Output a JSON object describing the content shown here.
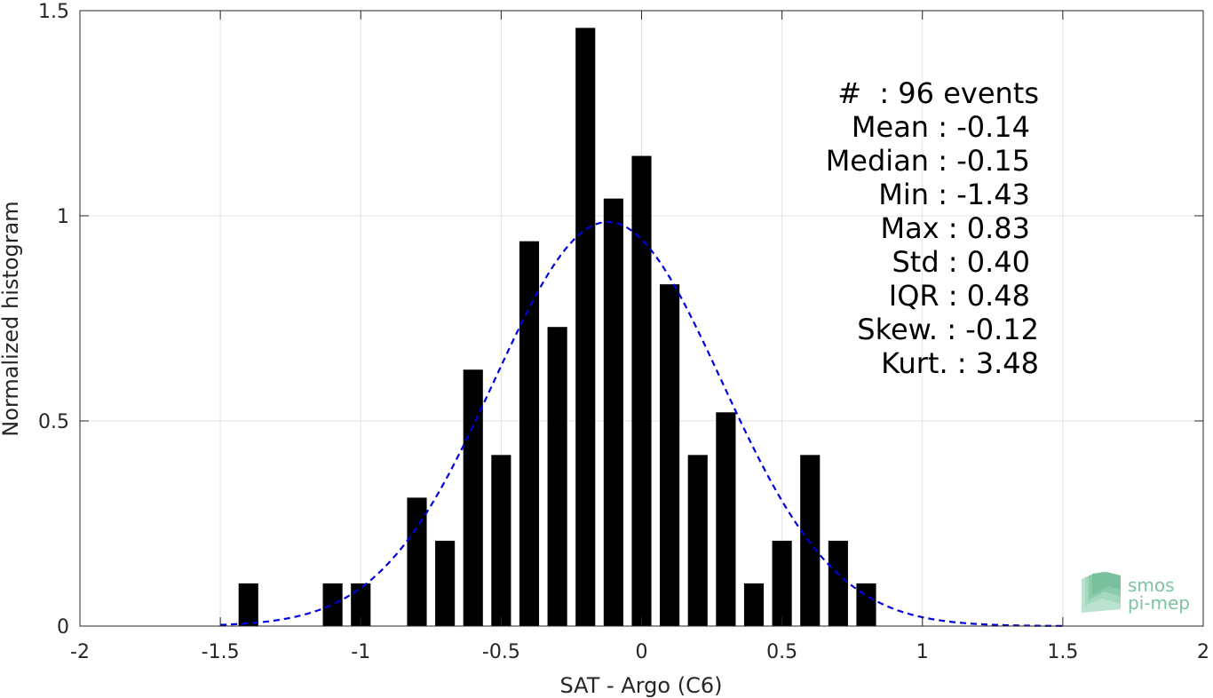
{
  "chart_data": {
    "type": "bar",
    "xlabel": "SAT - Argo (C6)",
    "ylabel": "Normalized histogram",
    "xlim": [
      -2,
      2
    ],
    "ylim": [
      0,
      1.5
    ],
    "xticks": [
      -2,
      -1.5,
      -1,
      -0.5,
      0,
      0.5,
      1,
      1.5,
      2
    ],
    "xtick_labels": [
      "-2",
      "-1.5",
      "-1",
      "-0.5",
      "0",
      "0.5",
      "1",
      "1.5",
      "2"
    ],
    "yticks": [
      0,
      0.5,
      1,
      1.5
    ],
    "ytick_labels": [
      "0",
      "0.5",
      "1",
      "1.5"
    ],
    "grid": true,
    "bar_width": 0.07,
    "bar_color": "#000000",
    "bars": [
      {
        "x": -1.4,
        "y": 0.104
      },
      {
        "x": -1.1,
        "y": 0.104
      },
      {
        "x": -1.0,
        "y": 0.104
      },
      {
        "x": -0.8,
        "y": 0.313
      },
      {
        "x": -0.7,
        "y": 0.208
      },
      {
        "x": -0.6,
        "y": 0.625
      },
      {
        "x": -0.5,
        "y": 0.417
      },
      {
        "x": -0.4,
        "y": 0.938
      },
      {
        "x": -0.3,
        "y": 0.729
      },
      {
        "x": -0.2,
        "y": 1.458
      },
      {
        "x": -0.1,
        "y": 1.042
      },
      {
        "x": 0.0,
        "y": 1.146
      },
      {
        "x": 0.1,
        "y": 0.833
      },
      {
        "x": 0.2,
        "y": 0.417
      },
      {
        "x": 0.3,
        "y": 0.521
      },
      {
        "x": 0.4,
        "y": 0.104
      },
      {
        "x": 0.5,
        "y": 0.208
      },
      {
        "x": 0.6,
        "y": 0.417
      },
      {
        "x": 0.7,
        "y": 0.208
      },
      {
        "x": 0.8,
        "y": 0.104
      }
    ],
    "fit_curve": {
      "type": "gaussian",
      "mean": -0.12,
      "std": 0.405,
      "x_range": [
        -1.5,
        1.5
      ],
      "color": "#0000dd",
      "style": "dashed"
    },
    "annotations": [
      "#  : 96 events",
      "Mean : -0.14",
      "Median : -0.15",
      "Min : -1.43",
      "Max : 0.83",
      "Std : 0.40",
      "IQR : 0.48",
      "Skew. : -0.12",
      "Kurt. : 3.48"
    ]
  },
  "logo": {
    "line1": "smos",
    "line2": "pi-mep",
    "color": "#7dc4a0"
  }
}
